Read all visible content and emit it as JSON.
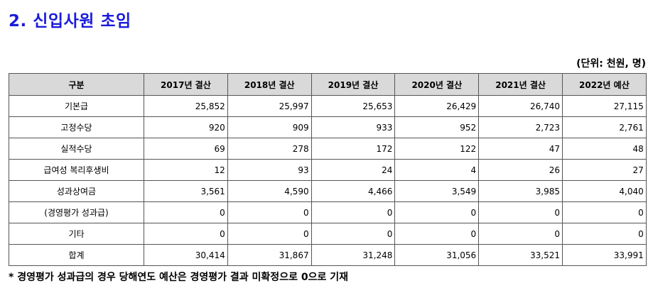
{
  "title": "2. 신입사원 초임",
  "unit": "(단위: 천원, 명)",
  "table": {
    "headers": [
      "구분",
      "2017년 결산",
      "2018년 결산",
      "2019년 결산",
      "2020년 결산",
      "2021년 결산",
      "2022년 예산"
    ],
    "rows": [
      {
        "label": "기본급",
        "values": [
          "25,852",
          "25,997",
          "25,653",
          "26,429",
          "26,740",
          "27,115"
        ]
      },
      {
        "label": "고정수당",
        "values": [
          "920",
          "909",
          "933",
          "952",
          "2,723",
          "2,761"
        ]
      },
      {
        "label": "실적수당",
        "values": [
          "69",
          "278",
          "172",
          "122",
          "47",
          "48"
        ]
      },
      {
        "label": "급여성 복리후생비",
        "values": [
          "12",
          "93",
          "24",
          "4",
          "26",
          "27"
        ]
      },
      {
        "label": "성과상여금",
        "values": [
          "3,561",
          "4,590",
          "4,466",
          "3,549",
          "3,985",
          "4,040"
        ]
      },
      {
        "label": "(경영평가 성과급)",
        "values": [
          "0",
          "0",
          "0",
          "0",
          "0",
          "0"
        ]
      },
      {
        "label": "기타",
        "values": [
          "0",
          "0",
          "0",
          "0",
          "0",
          "0"
        ]
      },
      {
        "label": "합계",
        "values": [
          "30,414",
          "31,867",
          "31,248",
          "31,056",
          "33,521",
          "33,991"
        ]
      }
    ]
  },
  "note": "* 경영평가 성과급의 경우 당해연도 예산은 경영평가 결과 미확정으로 0으로 기재",
  "colors": {
    "title": "#1a1adb",
    "header_bg": "#d9d9d9",
    "border": "#555555"
  }
}
